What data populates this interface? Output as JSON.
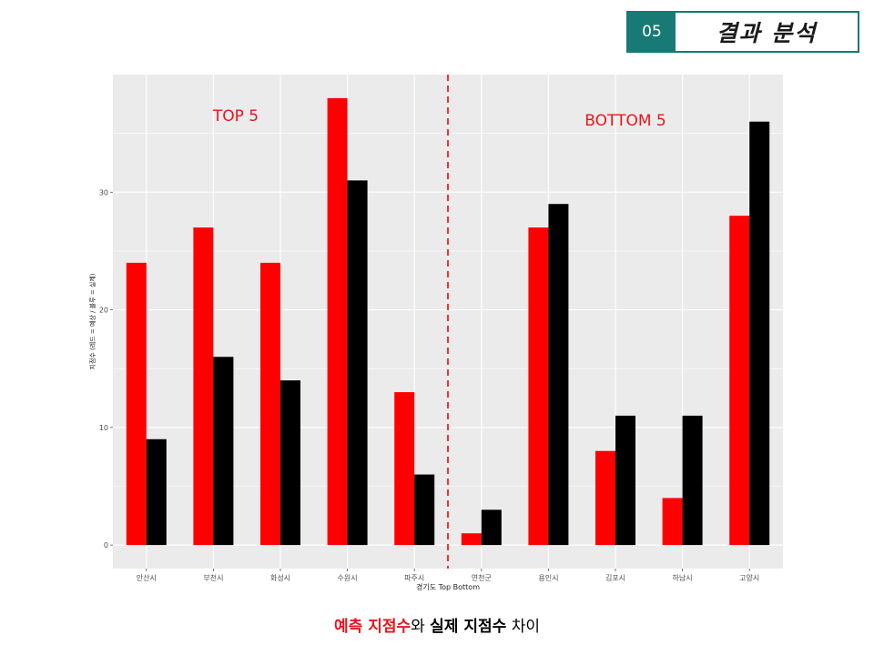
{
  "header": {
    "section_number": "05",
    "section_title": "결과 분석"
  },
  "caption": {
    "part1": "예측 지점수",
    "part2": "와 ",
    "part3": "실제 지점수",
    "part4": " 차이"
  },
  "colors": {
    "predicted": "#ff0000",
    "actual": "#000000",
    "panel": "#ebebeb",
    "grid": "#ffffff",
    "divider": "#ff0000",
    "annotation": "#e8141c",
    "header_accent": "#177a74"
  },
  "chart_data": {
    "type": "bar",
    "xlabel": "경기도 Top Bottom",
    "ylabel": "지점수 (레드 = 예상 / 블루 = 실제)",
    "ylim": [
      -2,
      40
    ],
    "yticks": [
      0,
      10,
      20,
      30
    ],
    "grid": true,
    "categories": [
      "안산시",
      "부천시",
      "화성시",
      "수원시",
      "파주시",
      "연천군",
      "용인시",
      "김포시",
      "하남시",
      "고양시"
    ],
    "series": [
      {
        "values": [
          24,
          27,
          24,
          38,
          13,
          1,
          27,
          8,
          4,
          28
        ]
      },
      {
        "values": [
          9,
          16,
          14,
          31,
          6,
          3,
          29,
          11,
          11,
          36
        ]
      }
    ],
    "annotations": [
      "TOP 5",
      "BOTTOM 5"
    ],
    "divider_after_index": 4
  }
}
